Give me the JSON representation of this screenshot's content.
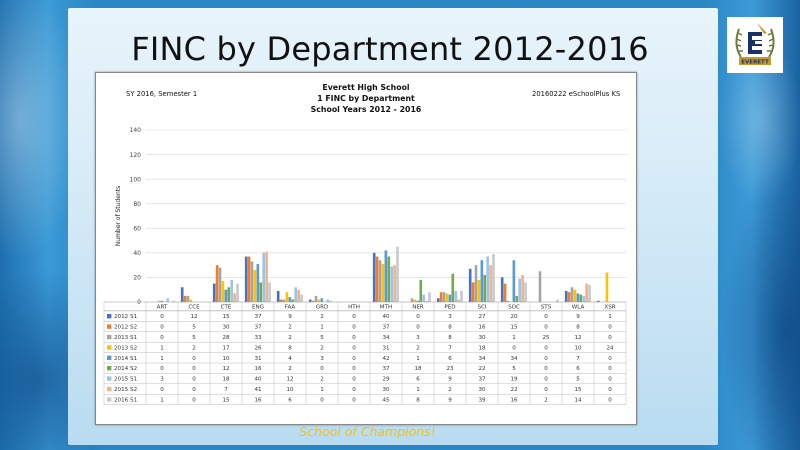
{
  "slide": {
    "title": "FINC by Department 2012-2016",
    "footer": "School of Champions!",
    "logo_text": "EVERETT",
    "logo_letter": "E"
  },
  "report": {
    "title_line1": "Everett High School",
    "title_line2": "1 FINC by Department",
    "title_line3": "School Years 2012 - 2016",
    "left_note": "SY 2016, Semester 1",
    "right_note": "20160222 eSchoolPlus KS"
  },
  "colors": {
    "series": [
      "#4472c4",
      "#ed7d31",
      "#a5a5a5",
      "#ffc000",
      "#5b9bd5",
      "#70ad47",
      "#9dc3e6",
      "#f4b183",
      "#c9c9c9"
    ]
  },
  "chart_data": {
    "type": "bar",
    "title": "",
    "xlabel": "",
    "ylabel": "Number of Students",
    "ylim": [
      0,
      140
    ],
    "yticks": [
      0,
      20,
      40,
      60,
      80,
      100,
      120,
      140
    ],
    "grid": true,
    "legend": "table-below",
    "categories": [
      "ART",
      "CCE",
      "CTE",
      "ENG",
      "FAA",
      "GRD",
      "HTH",
      "MTH",
      "NER",
      "PED",
      "SCI",
      "SOC",
      "STS",
      "WLA",
      "XSR"
    ],
    "series": [
      {
        "name": "2012 S1",
        "values": [
          0,
          12,
          15,
          37,
          9,
          2,
          0,
          40,
          0,
          3,
          27,
          20,
          0,
          9,
          1
        ]
      },
      {
        "name": "2012 S2",
        "values": [
          0,
          5,
          30,
          37,
          2,
          1,
          0,
          37,
          0,
          8,
          16,
          15,
          0,
          8,
          0
        ]
      },
      {
        "name": "2013 S1",
        "values": [
          0,
          5,
          28,
          33,
          2,
          5,
          0,
          34,
          3,
          8,
          30,
          1,
          25,
          12,
          0
        ]
      },
      {
        "name": "2013 S2",
        "values": [
          1,
          2,
          17,
          26,
          8,
          2,
          0,
          31,
          2,
          7,
          18,
          0,
          0,
          10,
          24
        ]
      },
      {
        "name": "2014 S1",
        "values": [
          1,
          0,
          10,
          31,
          4,
          3,
          0,
          42,
          1,
          6,
          34,
          34,
          0,
          7,
          0
        ]
      },
      {
        "name": "2014 S2",
        "values": [
          0,
          0,
          12,
          16,
          2,
          0,
          0,
          37,
          18,
          23,
          22,
          5,
          0,
          6,
          0
        ]
      },
      {
        "name": "2015 S1",
        "values": [
          3,
          0,
          18,
          40,
          12,
          2,
          0,
          29,
          6,
          9,
          37,
          19,
          0,
          5,
          0
        ]
      },
      {
        "name": "2015 S2",
        "values": [
          0,
          0,
          7,
          41,
          10,
          1,
          0,
          30,
          1,
          2,
          30,
          22,
          0,
          15,
          0
        ]
      },
      {
        "name": "2016 S1",
        "values": [
          1,
          0,
          15,
          16,
          6,
          0,
          0,
          45,
          8,
          9,
          39,
          16,
          2,
          14,
          0
        ]
      }
    ]
  }
}
